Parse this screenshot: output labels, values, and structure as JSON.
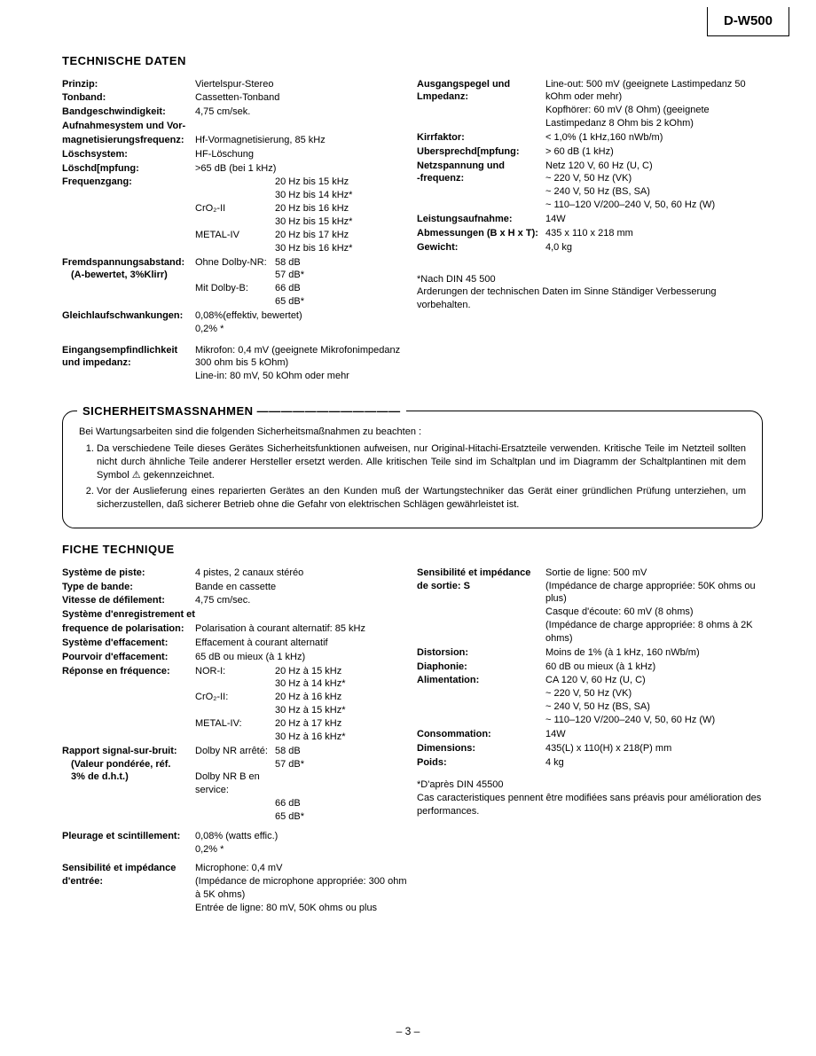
{
  "model": "D-W500",
  "page_number": "– 3 –",
  "de": {
    "title": "TECHNISCHE DATEN",
    "left": [
      {
        "l": "Prinzip:",
        "v": "Viertelspur-Stereo"
      },
      {
        "l": "Tonband:",
        "v": "Cassetten-Tonband"
      },
      {
        "l": "Bandgeschwindigkeit:",
        "v": "4,75 cm/sek."
      },
      {
        "l": "Aufnahmesystem und Vor-",
        "v": ""
      },
      {
        "l": "  magnetisierungsfrequenz:",
        "v": "Hf-Vormagnetisierung, 85 kHz"
      },
      {
        "l": "Löschsystem:",
        "v": "HF-Löschung"
      },
      {
        "l": "Löschd[mpfung:",
        "v": ">65 dB (bei 1 kHz)"
      }
    ],
    "freq_label": "Frequenzgang:",
    "freq": [
      {
        "k": "",
        "v": "20 Hz bis 15 kHz"
      },
      {
        "k": "",
        "v": "30 Hz bis 14 kHz*"
      },
      {
        "k": "CrO₂-II",
        "v": "20 Hz bis 16 kHz"
      },
      {
        "k": "",
        "v": "30 Hz bis 15 kHz*"
      },
      {
        "k": "METAL-IV",
        "v": "20 Hz bis 17 kHz"
      },
      {
        "k": "",
        "v": "30 Hz bis 16 kHz*"
      }
    ],
    "snr_label1": "Fremdspannungsabstand:",
    "snr_label2": "(A-bewertet, 3%Klirr)",
    "snr": [
      {
        "k": "Ohne Dolby-NR:",
        "v": "58 dB"
      },
      {
        "k": "",
        "v": "57 dB*"
      },
      {
        "k": "Mit Dolby-B:",
        "v": "66 dB"
      },
      {
        "k": "",
        "v": "65 dB*"
      }
    ],
    "wow_label": "Gleichlaufschwankungen:",
    "wow_v": "0,08%(effektiv, bewertet)\n0,2% *",
    "in_label1": "Eingangsempfindlichkeit",
    "in_label2": "  und impedanz:",
    "in_v": "Mikrofon: 0,4 mV (geeignete Mikrofonimpedanz 300 ohm bis 5 kOhm)\nLine-in: 80 mV, 50 kOhm oder mehr",
    "right": {
      "out_label1": "Ausgangspegel und",
      "out_label2": "  Lmpedanz:",
      "out_v": "Line-out: 500 mV (geeignete Lastimpedanz 50 kOhm oder mehr)\nKopfhörer: 60 mV (8 Ohm) (geeignete Lastimpedanz 8 Ohm bis 2 kOhm)",
      "rows": [
        {
          "l": "Kirrfaktor:",
          "v": "< 1,0% (1 kHz,160 nWb/m)"
        },
        {
          "l": "Ubersprechd[mpfung:",
          "v": "> 60 dB (1 kHz)"
        }
      ],
      "power_label1": "Netzspannung und",
      "power_label2": " -frequenz:",
      "power_v": "Netz 120 V, 60 Hz (U, C)\n ~  220 V, 50 Hz (VK)\n ~  240 V, 50 Hz (BS, SA)\n ~  110–120 V/200–240 V, 50, 60 Hz (W)",
      "rows2": [
        {
          "l": "Leistungsaufnahme:",
          "v": "14W"
        },
        {
          "l": "Abmessungen (B x H x T):",
          "v": "435 x 110 x 218 mm"
        },
        {
          "l": "Gewicht:",
          "v": "4,0 kg"
        }
      ],
      "note1": "*Nach DIN 45 500",
      "note2": "Arderungen der technischen Daten im Sinne Ständiger Verbesserung vorbehalten."
    }
  },
  "safety": {
    "title": "SICHERHEITSMASSNAHMEN",
    "intro": "Bei Wartungsarbeiten sind die folgenden Sicherheitsmaßnahmen zu beachten :",
    "items": [
      "Da verschiedene Teile dieses Gerätes Sicherheitsfunktionen aufweisen, nur Original-Hitachi-Ersatzteile verwenden. Kritische Teile im Netzteil sollten nicht durch ähnliche Teile anderer Hersteller ersetzt werden.  Alle kritischen Teile sind im Schaltplan und im Diagramm der Schaltplantinen mit dem Symbol  ⚠  gekennzeichnet.",
      "Vor der Auslieferung eines reparierten Gerätes an den Kunden muß der Wartungstechniker das Gerät einer gründlichen Prüfung unterziehen, um sicherzustellen, daß sicherer Betrieb ohne die Gefahr von elektrischen Schlägen gewährleistet ist."
    ]
  },
  "fr": {
    "title": "FICHE TECHNIQUE",
    "left": [
      {
        "l": "Système de piste:",
        "v": "4 pistes, 2 canaux stéréo"
      },
      {
        "l": "Type de bande:",
        "v": "Bande en cassette"
      },
      {
        "l": "Vitesse de défilement:",
        "v": "4,75 cm/sec."
      },
      {
        "l": "Système d'enregistrement et",
        "v": ""
      },
      {
        "l": "  frequence de polarisation:",
        "v": "Polarisation à courant alternatif: 85 kHz"
      },
      {
        "l": "Système d'effacement:",
        "v": "Effacement à courant alternatif"
      },
      {
        "l": "Pourvoir d'effacement:",
        "v": "65 dB ou mieux (à 1 kHz)"
      }
    ],
    "freq_label": "Réponse en fréquence:",
    "freq": [
      {
        "k": "NOR-I:",
        "v": "20 Hz à 15 kHz"
      },
      {
        "k": "",
        "v": "30 Hz à 14 kHz*"
      },
      {
        "k": "CrO₂-II:",
        "v": "20 Hz à 16 kHz"
      },
      {
        "k": "",
        "v": "30 Hz à 15 kHz*"
      },
      {
        "k": "METAL-IV:",
        "v": "20 Hz à 17 kHz"
      },
      {
        "k": "",
        "v": "30 Hz à 16 kHz*"
      }
    ],
    "snr_label1": "Rapport signal-sur-bruit:",
    "snr_label2": "(Valeur pondérée, réf.",
    "snr_label3": "3%  de d.h.t.)",
    "snr": [
      {
        "k": "Dolby NR arrêté:",
        "v": "58 dB"
      },
      {
        "k": "",
        "v": "57 dB*"
      },
      {
        "k": "Dolby NR B en service:",
        "v": ""
      },
      {
        "k": "",
        "v": "66 dB"
      },
      {
        "k": "",
        "v": "65 dB*"
      }
    ],
    "wow_label": "Pleurage et scintillement:",
    "wow_v": "0,08%  (watts effic.)\n0,2%  *",
    "in_label1": "Sensibilité et impédance",
    "in_label2": "  d'entrée:",
    "in_v": "Microphone: 0,4 mV\n (Impédance de microphone appropriée: 300 ohm à 5K ohms)\nEntrée de ligne: 80 mV, 50K ohms ou plus",
    "right": {
      "out_label1": "Sensibilité et impédance",
      "out_label2": "  de sortie:  S",
      "out_v": "Sortie de ligne: 500 mV\n (Impédance de charge appropriée: 50K ohms ou plus)\nCasque d'écoute: 60 mV (8 ohms)\n (Impédance de charge appropriée: 8 ohms à 2K ohms)",
      "rows": [
        {
          "l": "Distorsion:",
          "v": "Moins de 1%  (à 1 kHz, 160 nWb/m)"
        },
        {
          "l": "Diaphonie:",
          "v": "60 dB ou mieux (à 1 kHz)"
        }
      ],
      "power_label": "Alimentation:",
      "power_v": "CA 120 V, 60 Hz (U, C)\n ~  220 V, 50 Hz (VK)\n ~  240 V, 50 Hz (BS, SA)\n ~  110–120 V/200–240 V, 50, 60 Hz (W)",
      "rows2": [
        {
          "l": "Consommation:",
          "v": "14W"
        },
        {
          "l": "Dimensions:",
          "v": "435(L) x 110(H) x 218(P) mm"
        },
        {
          "l": "Poids:",
          "v": "4 kg"
        }
      ],
      "note1": "*D'après DIN 45500",
      "note2": "Cas caracteristiques pennent être modifiées sans préavis pour amélioration des performances."
    }
  }
}
